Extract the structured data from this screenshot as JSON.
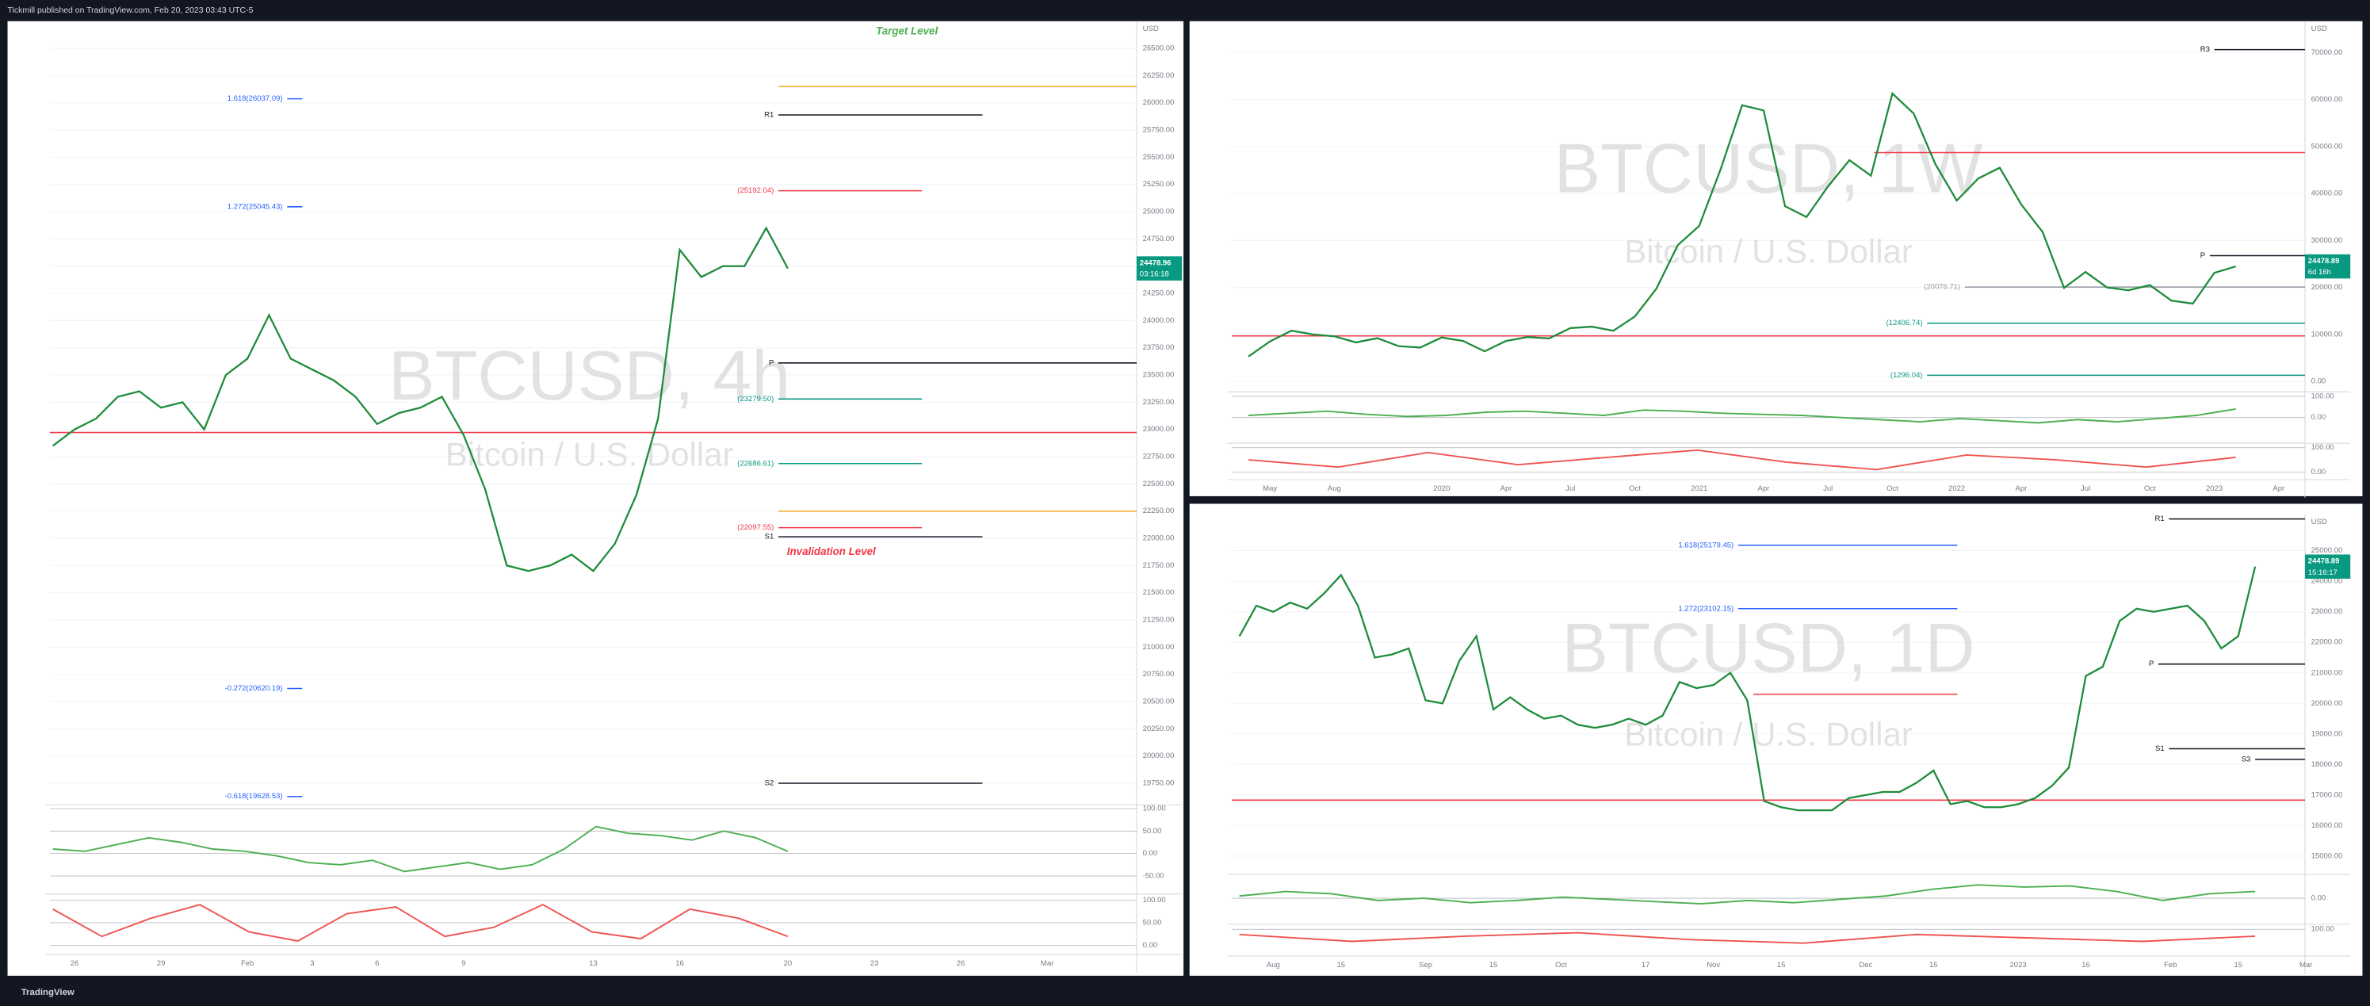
{
  "header": "Tickmill published on TradingView.com, Feb 20, 2023 03:43 UTC-5",
  "footer": "TradingView",
  "chart_data": [
    {
      "type": "line",
      "symbol": "BTCUSD, 4h",
      "description": "Bitcoin / U.S. Dollar",
      "currency": "USD",
      "price_label": "24478.96",
      "countdown": "03:16:18",
      "color": "#1e8c3a",
      "grid": true,
      "categories": [
        null,
        "26",
        null,
        null,
        null,
        "29",
        null,
        null,
        null,
        "Feb",
        null,
        null,
        "3",
        null,
        null,
        "6",
        null,
        null,
        null,
        "9",
        null,
        null,
        null,
        null,
        null,
        "13",
        null,
        null,
        null,
        "16",
        null,
        null,
        null,
        null,
        "20",
        null,
        null,
        null,
        "23",
        null,
        null,
        null,
        "26",
        null,
        null,
        null,
        "Mar",
        null,
        null,
        null,
        null
      ],
      "values": [
        22850,
        23000,
        23100,
        23300,
        23350,
        23200,
        23250,
        23000,
        23500,
        23650,
        24050,
        23650,
        23550,
        23450,
        23300,
        23050,
        23150,
        23200,
        23300,
        22950,
        22450,
        21750,
        21700,
        21750,
        21850,
        21700,
        21950,
        22400,
        23100,
        24650,
        24400,
        24500,
        24500,
        24850,
        24478.96,
        null,
        null,
        null,
        null,
        null,
        null,
        null,
        null,
        null,
        null,
        null,
        null,
        null,
        null,
        null,
        null
      ],
      "ylim": [
        19580,
        26750
      ],
      "yticks": [
        {
          "value": 19750,
          "label": "19750.00"
        },
        {
          "value": 20000,
          "label": "20000.00"
        },
        {
          "value": 20250,
          "label": "20250.00"
        },
        {
          "value": 20500,
          "label": "20500.00"
        },
        {
          "value": 20750,
          "label": "20750.00"
        },
        {
          "value": 21000,
          "label": "21000.00"
        },
        {
          "value": 21250,
          "label": "21250.00"
        },
        {
          "value": 21500,
          "label": "21500.00"
        },
        {
          "value": 21750,
          "label": "21750.00"
        },
        {
          "value": 22000,
          "label": "22000.00"
        },
        {
          "value": 22250,
          "label": "22250.00"
        },
        {
          "value": 22500,
          "label": "22500.00"
        },
        {
          "value": 22750,
          "label": "22750.00"
        },
        {
          "value": 23000,
          "label": "23000.00"
        },
        {
          "value": 23250,
          "label": "23250.00"
        },
        {
          "value": 23500,
          "label": "23500.00"
        },
        {
          "value": 23750,
          "label": "23750.00"
        },
        {
          "value": 24000,
          "label": "24000.00"
        },
        {
          "value": 24250,
          "label": "24250.00"
        },
        {
          "value": 24500,
          "label": "24500.00"
        },
        {
          "value": 24750,
          "label": "24750.00"
        },
        {
          "value": 25000,
          "label": "25000.00"
        },
        {
          "value": 25250,
          "label": "25250.00"
        },
        {
          "value": 25500,
          "label": "25500.00"
        },
        {
          "value": 25750,
          "label": "25750.00"
        },
        {
          "value": 26000,
          "label": "26000.00"
        },
        {
          "value": 26250,
          "label": "26250.00"
        },
        {
          "value": 26500,
          "label": "26500.00"
        }
      ],
      "levels": [
        {
          "label": "1.618(26037.09)",
          "value": 26037.09,
          "color": "#2962ff"
        },
        {
          "label": "1.272(25045.43)",
          "value": 25045.43,
          "color": "#2962ff"
        },
        {
          "label": "-0.272(20620.19)",
          "value": 20620.19,
          "color": "#2962ff"
        },
        {
          "label": "-0.618(19628.53)",
          "value": 19628.53,
          "color": "#2962ff"
        },
        {
          "label": "R1",
          "value": 25889,
          "color": "#131722"
        },
        {
          "label": "P",
          "value": 23611,
          "color": "#131722"
        },
        {
          "label": "S1",
          "value": 22014,
          "color": "#131722"
        },
        {
          "label": "S2",
          "value": 19750,
          "color": "#131722"
        },
        {
          "label": "(25192.04)",
          "value": 25192.04,
          "color": "#f23645"
        },
        {
          "label": "(23279.50)",
          "value": 23279.5,
          "color": "#089981"
        },
        {
          "label": "(22686.61)",
          "value": 22686.61,
          "color": "#089981"
        },
        {
          "label": "(22097.55)",
          "value": 22097.55,
          "color": "#f23645"
        },
        {
          "value": 26150,
          "color": "#f5a623"
        },
        {
          "value": 22250,
          "color": "#f5a623"
        },
        {
          "value": 22972,
          "color": "#f23645"
        }
      ],
      "annotations": [
        {
          "text": "Target Level",
          "color": "#4caf50"
        },
        {
          "text": "Invalidation Level",
          "color": "#f23645"
        }
      ],
      "indicators": [
        {
          "color": "#4caf50",
          "ylim": [
            -80,
            105
          ],
          "yticks": [
            {
              "value": 100,
              "label": "100.00"
            },
            {
              "value": 50,
              "label": "50.00"
            },
            {
              "value": 0,
              "label": "0.00"
            },
            {
              "value": -50,
              "label": "-50.00"
            }
          ],
          "values": [
            10,
            5,
            20,
            35,
            25,
            10,
            5,
            -5,
            -20,
            -25,
            -15,
            -40,
            -30,
            -20,
            -35,
            -25,
            10,
            60,
            45,
            40,
            30,
            50,
            35,
            5
          ]
        },
        {
          "color": "#ef5350",
          "ylim": [
            -10,
            110
          ],
          "yticks": [
            {
              "value": 100,
              "label": "100.00"
            },
            {
              "value": 50,
              "label": "50.00"
            },
            {
              "value": 0,
              "label": "0.00"
            }
          ],
          "values": [
            80,
            20,
            60,
            90,
            30,
            10,
            70,
            85,
            20,
            40,
            90,
            30,
            15,
            80,
            60,
            20
          ]
        }
      ]
    },
    {
      "type": "line",
      "symbol": "BTCUSD, 1W",
      "description": "Bitcoin / U.S. Dollar",
      "currency": "USD",
      "price_label": "24478.89",
      "countdown": "6d 16h",
      "color": "#1e8c3a",
      "grid": true,
      "categories": [
        null,
        "May",
        null,
        null,
        "Aug",
        null,
        null,
        null,
        null,
        "2020",
        null,
        null,
        "Apr",
        null,
        null,
        "Jul",
        null,
        null,
        "Oct",
        null,
        null,
        "2021",
        null,
        null,
        "Apr",
        null,
        null,
        "Jul",
        null,
        null,
        "Oct",
        null,
        null,
        "2022",
        null,
        null,
        "Apr",
        null,
        null,
        "Jul",
        null,
        null,
        "Oct",
        null,
        null,
        "2023",
        null,
        null,
        "Apr",
        null
      ],
      "values": [
        5300,
        8500,
        10800,
        10000,
        9600,
        8300,
        9200,
        7500,
        7200,
        9350,
        8600,
        6400,
        8600,
        9450,
        9140,
        11350,
        11650,
        10780,
        13800,
        19700,
        29000,
        33100,
        45200,
        58800,
        57700,
        37300,
        35000,
        41500,
        47100,
        43800,
        61300,
        57000,
        46300,
        38500,
        43200,
        45500,
        37700,
        31800,
        19900,
        23300,
        20000,
        19400,
        20500,
        17200,
        16550,
        23100,
        24478.89,
        null,
        null,
        null
      ],
      "ylim": [
        -1900,
        76700
      ],
      "yticks": [
        {
          "value": 0,
          "label": "0.00"
        },
        {
          "value": 10000,
          "label": "10000.00"
        },
        {
          "value": 20000,
          "label": "20000.00"
        },
        {
          "value": 30000,
          "label": "30000.00"
        },
        {
          "value": 40000,
          "label": "40000.00"
        },
        {
          "value": 50000,
          "label": "50000.00"
        },
        {
          "value": 60000,
          "label": "60000.00"
        },
        {
          "value": 70000,
          "label": "70000.00"
        }
      ],
      "levels": [
        {
          "label": "R3",
          "value": 70645,
          "color": "#131722"
        },
        {
          "label": "P",
          "value": 26774,
          "color": "#131722"
        },
        {
          "label": "(20076.71)",
          "value": 20076.71,
          "color": "#9598a1"
        },
        {
          "label": "(12406.74)",
          "value": 12406.74,
          "color": "#089981"
        },
        {
          "label": "(1296.04)",
          "value": 1296.04,
          "color": "#089981"
        },
        {
          "value": 48710,
          "color": "#f23645"
        },
        {
          "value": 9677,
          "color": "#f23645"
        }
      ],
      "indicators": [
        {
          "color": "#4caf50",
          "ylim": [
            -114,
            114
          ],
          "yticks": [
            {
              "value": 100,
              "label": "100.00"
            },
            {
              "value": 0,
              "label": "0.00"
            }
          ],
          "values": [
            10,
            20,
            30,
            15,
            5,
            10,
            25,
            30,
            20,
            10,
            35,
            30,
            20,
            15,
            10,
            0,
            -10,
            -20,
            -5,
            -15,
            -25,
            -10,
            -20,
            -5,
            10,
            40
          ]
        },
        {
          "color": "#ef5350",
          "ylim": [
            -25,
            112
          ],
          "yticks": [
            {
              "value": 100,
              "label": "100.00"
            },
            {
              "value": 0,
              "label": "0.00"
            }
          ],
          "values": [
            50,
            20,
            80,
            30,
            60,
            90,
            40,
            10,
            70,
            50,
            20,
            60
          ]
        }
      ]
    },
    {
      "type": "line",
      "symbol": "BTCUSD, 1D",
      "description": "Bitcoin / U.S. Dollar",
      "currency": "USD",
      "price_label": "24478.89",
      "countdown": "15:16:17",
      "color": "#1e8c3a",
      "grid": true,
      "categories": [
        null,
        null,
        "Aug",
        null,
        null,
        null,
        "15",
        null,
        null,
        null,
        null,
        "Sep",
        null,
        null,
        null,
        "15",
        null,
        null,
        null,
        "Oct",
        null,
        null,
        null,
        null,
        "17",
        null,
        null,
        null,
        "Nov",
        null,
        null,
        null,
        "15",
        null,
        null,
        null,
        null,
        "Dec",
        null,
        null,
        null,
        "15",
        null,
        null,
        null,
        null,
        "2023",
        null,
        null,
        null,
        "16",
        null,
        null,
        null,
        null,
        "Feb",
        null,
        null,
        null,
        "15",
        null,
        null,
        null,
        "Mar",
        null
      ],
      "values": [
        22200,
        23200,
        23000,
        23300,
        23100,
        23600,
        24200,
        23200,
        21500,
        21600,
        21800,
        20100,
        20000,
        21400,
        22200,
        19800,
        20200,
        19800,
        19500,
        19600,
        19300,
        19200,
        19300,
        19500,
        19300,
        19600,
        20700,
        20500,
        20600,
        21000,
        20100,
        16800,
        16600,
        16500,
        16500,
        16500,
        16900,
        17000,
        17100,
        17100,
        17400,
        17800,
        16700,
        16800,
        16600,
        16600,
        16700,
        16900,
        17300,
        17900,
        20900,
        21200,
        22700,
        23100,
        23000,
        23100,
        23200,
        22700,
        21800,
        22200,
        24478.89,
        null,
        null,
        null,
        null
      ],
      "ylim": [
        14450,
        26190
      ],
      "yticks": [
        {
          "value": 15000,
          "label": "15000.00"
        },
        {
          "value": 16000,
          "label": "16000.00"
        },
        {
          "value": 17000,
          "label": "17000.00"
        },
        {
          "value": 18000,
          "label": "18000.00"
        },
        {
          "value": 19000,
          "label": "19000.00"
        },
        {
          "value": 20000,
          "label": "20000.00"
        },
        {
          "value": 21000,
          "label": "21000.00"
        },
        {
          "value": 22000,
          "label": "22000.00"
        },
        {
          "value": 23000,
          "label": "23000.00"
        },
        {
          "value": 24000,
          "label": "24000.00"
        },
        {
          "value": 25000,
          "label": "25000.00"
        }
      ],
      "levels": [
        {
          "label": "1.618(25179.45)",
          "value": 25179.45,
          "color": "#2962ff"
        },
        {
          "label": "1.272(23102.15)",
          "value": 23102.15,
          "color": "#2962ff"
        },
        {
          "label": "R1",
          "value": 26040,
          "color": "#131722"
        },
        {
          "label": "P",
          "value": 21287,
          "color": "#131722"
        },
        {
          "label": "S1",
          "value": 18515,
          "color": "#131722"
        },
        {
          "label": "S3",
          "value": 18168,
          "color": "#131722"
        },
        {
          "value": 16832,
          "color": "#f23645"
        },
        {
          "value": 20300,
          "color": "#f23645"
        }
      ],
      "indicators": [
        {
          "color": "#4caf50",
          "ylim": [
            -110,
            100
          ],
          "yticks": [
            {
              "value": 0,
              "label": "0.00"
            }
          ],
          "values": [
            10,
            30,
            20,
            -10,
            0,
            -20,
            -10,
            5,
            -5,
            -15,
            -25,
            -10,
            -20,
            -5,
            10,
            40,
            60,
            50,
            55,
            30,
            -10,
            20,
            30
          ]
        },
        {
          "color": "#ef5350",
          "ylim": [
            -20,
            120
          ],
          "yticks": [
            {
              "value": 100,
              "label": "100.00"
            }
          ],
          "values": [
            70,
            30,
            60,
            80,
            40,
            20,
            70,
            50,
            30,
            60
          ]
        }
      ]
    }
  ]
}
